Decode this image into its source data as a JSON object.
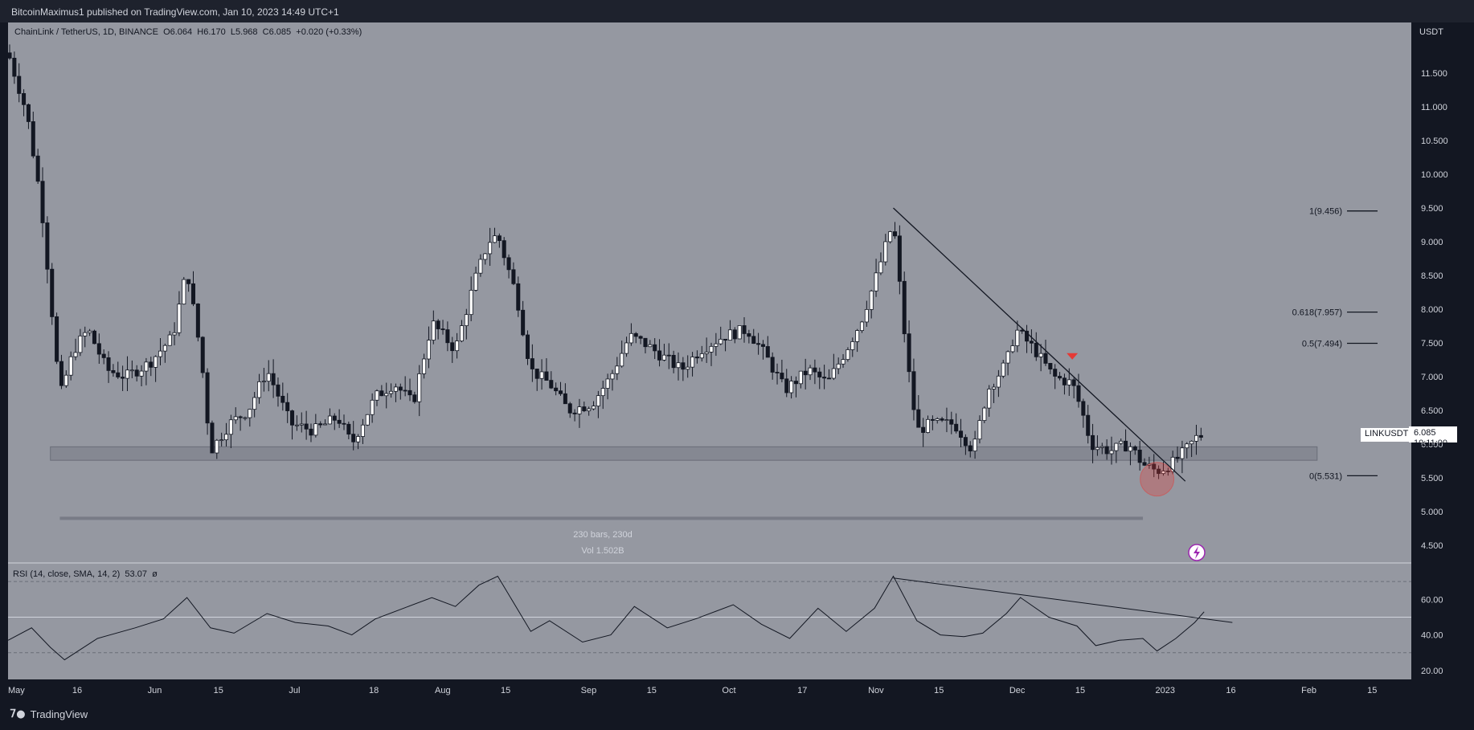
{
  "header": {
    "publisher_line": "BitcoinMaximus1 published on TradingView.com, Jan 10, 2023 14:49 UTC+1"
  },
  "legend": {
    "symbol": "ChainLink / TetherUS, 1D, BINANCE",
    "o_label": "O",
    "o": "6.064",
    "h_label": "H",
    "h": "6.170",
    "l_label": "L",
    "l": "5.968",
    "c_label": "C",
    "c": "6.085",
    "change": "+0.020 (+0.33%)"
  },
  "stats": {
    "bars": "230 bars, 230d",
    "vol": "Vol 1.502B"
  },
  "price_tag": {
    "symbol": "LINKUSDT",
    "price": "6.085",
    "countdown": "10:11:00"
  },
  "rsi_legend": {
    "label": "RSI (14, close, SMA, 14, 2)",
    "value": "53.07",
    "symbol": "ø"
  },
  "footer": {
    "brand": "TradingView"
  },
  "colors": {
    "background": "#9598a1",
    "frame": "#131722",
    "bull": "#ffffff",
    "bear": "#131722",
    "red_marker": "#e53935"
  },
  "icons": [
    "tradingview-logo-icon",
    "lightning-icon",
    "red-triangle-down-marker-icon"
  ],
  "chart_data": [
    {
      "type": "candlestick",
      "title": "ChainLink / TetherUS, 1D, BINANCE",
      "ylabel": "USDT",
      "ylim": [
        4.25,
        12.25
      ],
      "yticks": [
        "11.500",
        "11.000",
        "10.500",
        "10.000",
        "9.500",
        "9.000",
        "8.500",
        "8.000",
        "7.500",
        "7.000",
        "6.500",
        "6.000",
        "5.500",
        "5.000",
        "4.500"
      ],
      "xticks": [
        "May",
        "16",
        "Jun",
        "15",
        "Jul",
        "18",
        "Aug",
        "15",
        "Sep",
        "15",
        "Oct",
        "17",
        "Nov",
        "15",
        "Dec",
        "15",
        "2023",
        "16",
        "Feb",
        "15"
      ],
      "xlim": [
        "2022-05-01",
        "2023-02-23"
      ],
      "grid": false,
      "close_series": [
        {
          "date": "2022-05-01",
          "close": 11.8
        },
        {
          "date": "2022-05-05",
          "close": 10.9
        },
        {
          "date": "2022-05-08",
          "close": 9.6
        },
        {
          "date": "2022-05-10",
          "close": 8.2
        },
        {
          "date": "2022-05-12",
          "close": 6.7
        },
        {
          "date": "2022-05-15",
          "close": 7.4
        },
        {
          "date": "2022-05-18",
          "close": 7.7
        },
        {
          "date": "2022-05-22",
          "close": 7.1
        },
        {
          "date": "2022-05-26",
          "close": 7.0
        },
        {
          "date": "2022-05-31",
          "close": 7.2
        },
        {
          "date": "2022-06-05",
          "close": 7.6
        },
        {
          "date": "2022-06-08",
          "close": 8.6
        },
        {
          "date": "2022-06-11",
          "close": 7.3
        },
        {
          "date": "2022-06-13",
          "close": 5.9
        },
        {
          "date": "2022-06-17",
          "close": 6.3
        },
        {
          "date": "2022-06-21",
          "close": 6.5
        },
        {
          "date": "2022-06-25",
          "close": 7.1
        },
        {
          "date": "2022-06-30",
          "close": 6.3
        },
        {
          "date": "2022-07-05",
          "close": 6.2
        },
        {
          "date": "2022-07-10",
          "close": 6.4
        },
        {
          "date": "2022-07-13",
          "close": 6.0
        },
        {
          "date": "2022-07-18",
          "close": 6.7
        },
        {
          "date": "2022-07-22",
          "close": 6.9
        },
        {
          "date": "2022-07-26",
          "close": 6.6
        },
        {
          "date": "2022-07-30",
          "close": 7.8
        },
        {
          "date": "2022-08-04",
          "close": 7.4
        },
        {
          "date": "2022-08-08",
          "close": 8.4
        },
        {
          "date": "2022-08-11",
          "close": 9.0
        },
        {
          "date": "2022-08-13",
          "close": 9.1
        },
        {
          "date": "2022-08-17",
          "close": 8.2
        },
        {
          "date": "2022-08-20",
          "close": 7.1
        },
        {
          "date": "2022-08-24",
          "close": 6.9
        },
        {
          "date": "2022-08-28",
          "close": 6.5
        },
        {
          "date": "2022-09-02",
          "close": 6.6
        },
        {
          "date": "2022-09-06",
          "close": 7.0
        },
        {
          "date": "2022-09-10",
          "close": 7.6
        },
        {
          "date": "2022-09-13",
          "close": 7.5
        },
        {
          "date": "2022-09-17",
          "close": 7.3
        },
        {
          "date": "2022-09-21",
          "close": 7.1
        },
        {
          "date": "2022-09-25",
          "close": 7.4
        },
        {
          "date": "2022-09-30",
          "close": 7.6
        },
        {
          "date": "2022-10-05",
          "close": 7.7
        },
        {
          "date": "2022-10-09",
          "close": 7.3
        },
        {
          "date": "2022-10-13",
          "close": 6.8
        },
        {
          "date": "2022-10-18",
          "close": 7.1
        },
        {
          "date": "2022-10-22",
          "close": 6.9
        },
        {
          "date": "2022-10-26",
          "close": 7.4
        },
        {
          "date": "2022-10-29",
          "close": 7.8
        },
        {
          "date": "2022-11-01",
          "close": 8.4
        },
        {
          "date": "2022-11-05",
          "close": 9.3
        },
        {
          "date": "2022-11-08",
          "close": 7.2
        },
        {
          "date": "2022-11-10",
          "close": 6.2
        },
        {
          "date": "2022-11-13",
          "close": 6.3
        },
        {
          "date": "2022-11-18",
          "close": 6.3
        },
        {
          "date": "2022-11-22",
          "close": 5.9
        },
        {
          "date": "2022-11-25",
          "close": 6.8
        },
        {
          "date": "2022-11-29",
          "close": 7.2
        },
        {
          "date": "2022-12-01",
          "close": 7.7
        },
        {
          "date": "2022-12-05",
          "close": 7.4
        },
        {
          "date": "2022-12-09",
          "close": 7.0
        },
        {
          "date": "2022-12-13",
          "close": 6.9
        },
        {
          "date": "2022-12-15",
          "close": 6.5
        },
        {
          "date": "2022-12-17",
          "close": 6.0
        },
        {
          "date": "2022-12-21",
          "close": 5.9
        },
        {
          "date": "2022-12-25",
          "close": 6.0
        },
        {
          "date": "2022-12-28",
          "close": 5.7
        },
        {
          "date": "2022-12-31",
          "close": 5.6
        },
        {
          "date": "2023-01-03",
          "close": 5.7
        },
        {
          "date": "2023-01-06",
          "close": 5.9
        },
        {
          "date": "2023-01-09",
          "close": 6.15
        },
        {
          "date": "2023-01-10",
          "close": 6.085
        }
      ],
      "annotations": {
        "fib_levels": [
          {
            "label": "1(9.456)",
            "value": 9.456
          },
          {
            "label": "0.618(7.957)",
            "value": 7.957
          },
          {
            "label": "0.5(7.494)",
            "value": 7.494
          },
          {
            "label": "0(5.531)",
            "value": 5.531
          }
        ],
        "support_zone": [
          5.76,
          5.96
        ],
        "trendline": [
          {
            "date": "2022-11-05",
            "value": 9.5
          },
          {
            "date": "2023-01-06",
            "value": 5.45
          }
        ],
        "marker_down": {
          "date": "2022-12-13",
          "value": 7.3
        },
        "highlight_circle": {
          "date": "2022-12-31",
          "value": 5.48
        },
        "range_bar_value": 4.9
      }
    },
    {
      "type": "line",
      "title": "RSI (14, close, SMA, 14, 2)",
      "ylim": [
        15,
        80
      ],
      "yticks": [
        "60.00",
        "40.00",
        "20.00"
      ],
      "bands": [
        70,
        50,
        30
      ],
      "x": [
        "2022-05-01",
        "2022-05-06",
        "2022-05-10",
        "2022-05-13",
        "2022-05-20",
        "2022-05-28",
        "2022-06-03",
        "2022-06-08",
        "2022-06-13",
        "2022-06-18",
        "2022-06-25",
        "2022-07-01",
        "2022-07-08",
        "2022-07-13",
        "2022-07-18",
        "2022-07-25",
        "2022-07-30",
        "2022-08-04",
        "2022-08-09",
        "2022-08-13",
        "2022-08-20",
        "2022-08-24",
        "2022-08-31",
        "2022-09-06",
        "2022-09-11",
        "2022-09-18",
        "2022-09-24",
        "2022-10-02",
        "2022-10-08",
        "2022-10-14",
        "2022-10-20",
        "2022-10-26",
        "2022-11-01",
        "2022-11-05",
        "2022-11-10",
        "2022-11-15",
        "2022-11-20",
        "2022-11-24",
        "2022-11-29",
        "2022-12-02",
        "2022-12-08",
        "2022-12-14",
        "2022-12-18",
        "2022-12-23",
        "2022-12-28",
        "2022-12-31",
        "2023-01-04",
        "2023-01-08",
        "2023-01-10"
      ],
      "values": [
        37,
        44,
        33,
        26,
        38,
        44,
        49,
        61,
        44,
        41,
        52,
        47,
        45,
        40,
        49,
        56,
        61,
        56,
        68,
        73,
        42,
        48,
        36,
        40,
        56,
        44,
        49,
        57,
        46,
        38,
        55,
        42,
        55,
        73,
        48,
        40,
        39,
        41,
        52,
        61,
        50,
        45,
        34,
        37,
        38,
        31,
        38,
        47,
        53
      ],
      "trendline": [
        {
          "date": "2022-11-05",
          "value": 72
        },
        {
          "date": "2023-01-16",
          "value": 47
        }
      ]
    }
  ]
}
